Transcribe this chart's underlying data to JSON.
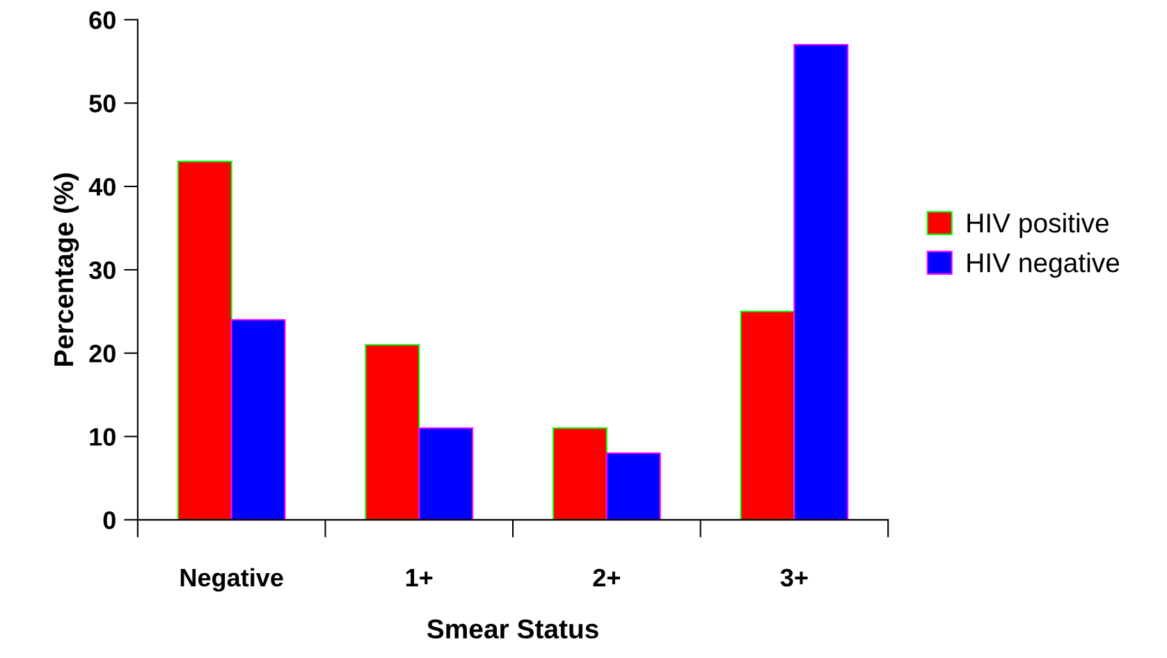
{
  "chart_data": {
    "type": "bar",
    "xlabel": "Smear Status",
    "ylabel": "Percentage (%)",
    "categories": [
      "Negative",
      "1+",
      "2+",
      "3+"
    ],
    "series": [
      {
        "name": "HIV positive",
        "color": "#ff0000",
        "values": [
          43,
          21,
          11,
          25
        ]
      },
      {
        "name": "HIV negative",
        "color": "#0000ff",
        "values": [
          24,
          11,
          8,
          57
        ]
      }
    ],
    "ylim": [
      0,
      60
    ],
    "yticks": [
      0,
      10,
      20,
      30,
      40,
      50,
      60
    ],
    "grid": false,
    "legend": "right"
  }
}
